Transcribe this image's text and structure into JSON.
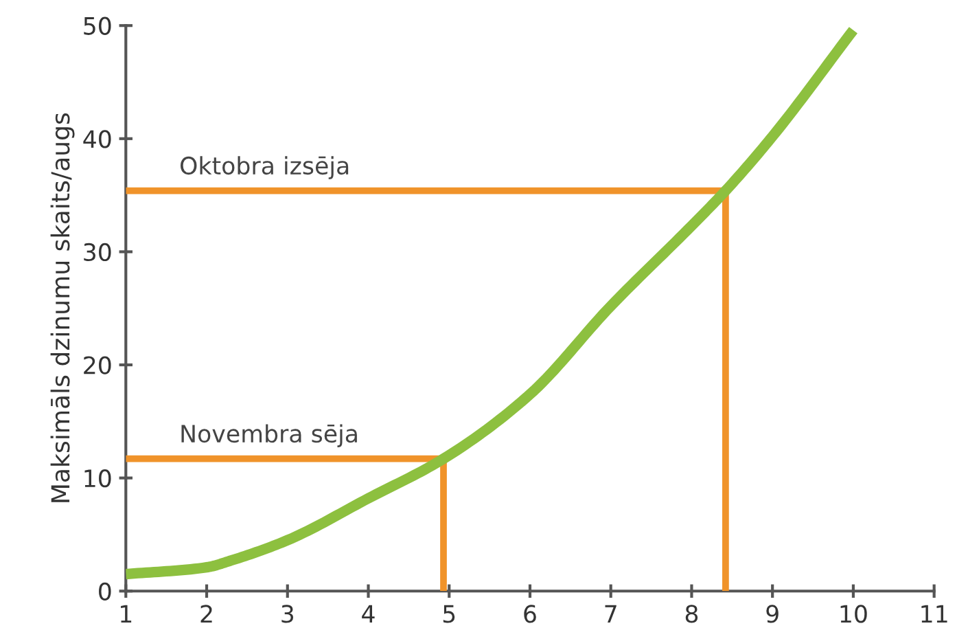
{
  "chart_data": {
    "type": "line",
    "ylabel": "Maksimāls dzinumu skaits/augs",
    "xlim": [
      1,
      11
    ],
    "ylim": [
      0,
      50
    ],
    "xticks": [
      1,
      2,
      3,
      4,
      5,
      6,
      7,
      8,
      9,
      10,
      11
    ],
    "yticks": [
      0,
      10,
      20,
      30,
      40,
      50
    ],
    "grid": false,
    "legend": false,
    "marker": "none",
    "line_style": "solid",
    "series": [
      {
        "color": "#f0932a",
        "x": [
          1,
          8.42,
          8.42
        ],
        "values": [
          35.4,
          35.4,
          0
        ]
      },
      {
        "color": "#f0932a",
        "x": [
          1,
          4.93,
          4.93
        ],
        "values": [
          11.7,
          11.7,
          0
        ]
      },
      {
        "color": "#8dc03f",
        "x": [
          1,
          2,
          2.3,
          3,
          4,
          4.93,
          6,
          7,
          8,
          8.42,
          9,
          10
        ],
        "values": [
          1.5,
          2.1,
          2.7,
          4.5,
          8.2,
          11.7,
          17.4,
          25.2,
          32.3,
          35.4,
          40.2,
          49.6
        ]
      }
    ],
    "annotations": [
      "Oktobra izsēja",
      "Novembra sēja"
    ]
  }
}
